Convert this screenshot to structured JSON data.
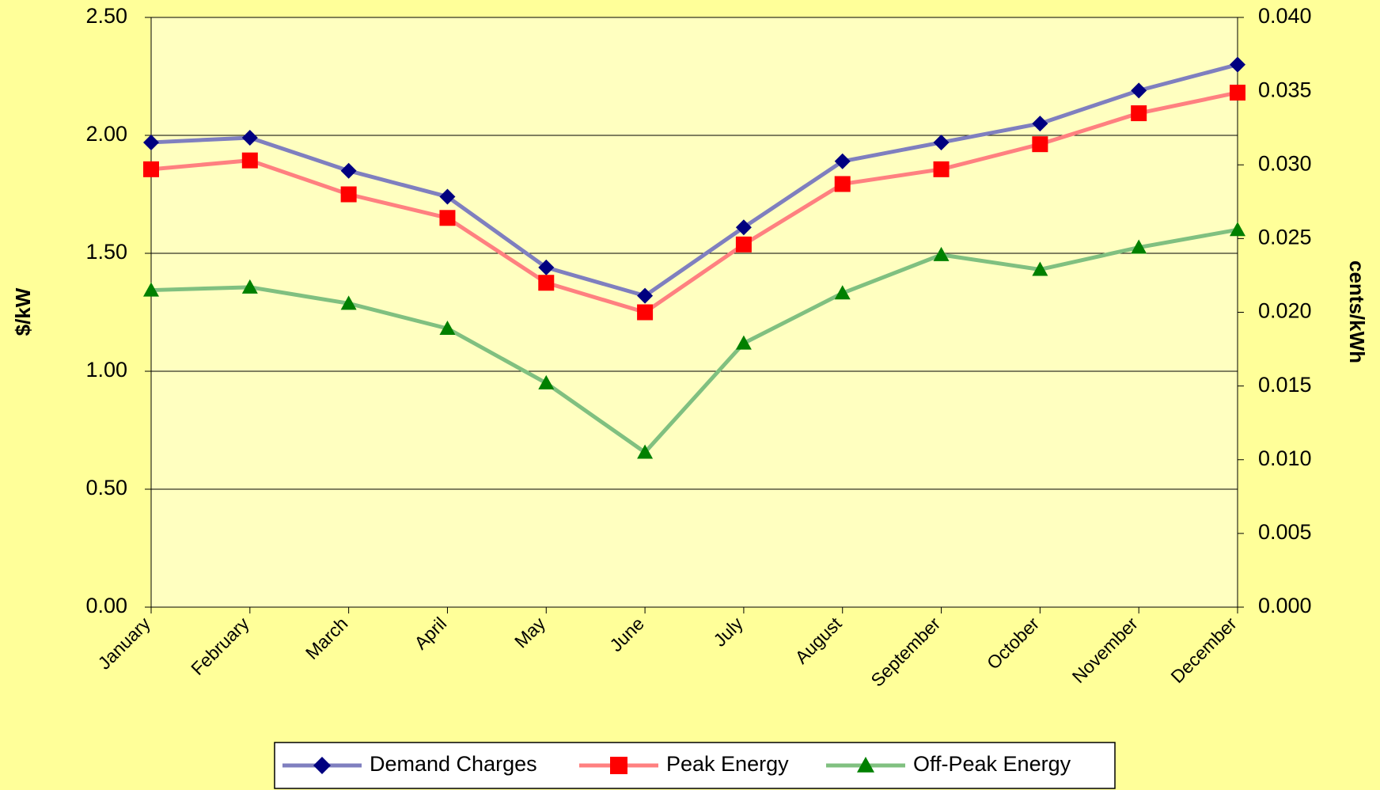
{
  "chart_data": {
    "type": "line",
    "y_label": "$/kW",
    "y2_label": "cents/kWh",
    "categories": [
      "January",
      "February",
      "March",
      "April",
      "May",
      "June",
      "July",
      "August",
      "September",
      "October",
      "November",
      "December"
    ],
    "series": [
      {
        "name": "Demand Charges",
        "color": "#7f7fbf",
        "marker": "diamond",
        "marker_color": "#000080",
        "values": [
          1.97,
          1.99,
          1.85,
          1.74,
          1.44,
          1.32,
          1.61,
          1.89,
          1.97,
          2.05,
          2.19,
          2.3
        ]
      },
      {
        "name": "Peak Energy",
        "color": "#ff8080",
        "marker": "square",
        "marker_color": "#ff0000",
        "axis": "y2",
        "values": [
          0.0297,
          0.0303,
          0.028,
          0.0264,
          0.022,
          0.02,
          0.0246,
          0.0287,
          0.0297,
          0.0314,
          0.0335,
          0.0349
        ]
      },
      {
        "name": "Off-Peak Energy",
        "color": "#80c080",
        "marker": "triangle",
        "marker_color": "#008000",
        "axis": "y2",
        "values": [
          0.0215,
          0.0217,
          0.0206,
          0.0189,
          0.0152,
          0.0105,
          0.0179,
          0.0213,
          0.0239,
          0.0229,
          0.0244,
          0.0256
        ]
      }
    ],
    "ylim": [
      0,
      2.5
    ],
    "yticks": [
      {
        "value": 0,
        "label": "0.00"
      },
      {
        "value": 0.5,
        "label": "0.50"
      },
      {
        "value": 1,
        "label": "1.00"
      },
      {
        "value": 1.5,
        "label": "1.50"
      },
      {
        "value": 2,
        "label": "2.00"
      },
      {
        "value": 2.5,
        "label": "2.50"
      }
    ],
    "y2lim": [
      0,
      0.04
    ],
    "y2ticks": [
      {
        "value": 0,
        "label": "0.000"
      },
      {
        "value": 0.005,
        "label": "0.005"
      },
      {
        "value": 0.01,
        "label": "0.010"
      },
      {
        "value": 0.015,
        "label": "0.015"
      },
      {
        "value": 0.02,
        "label": "0.020"
      },
      {
        "value": 0.025,
        "label": "0.025"
      },
      {
        "value": 0.03,
        "label": "0.030"
      },
      {
        "value": 0.035,
        "label": "0.035"
      },
      {
        "value": 0.04,
        "label": "0.040"
      }
    ],
    "grid": true,
    "legend": "bottom"
  }
}
